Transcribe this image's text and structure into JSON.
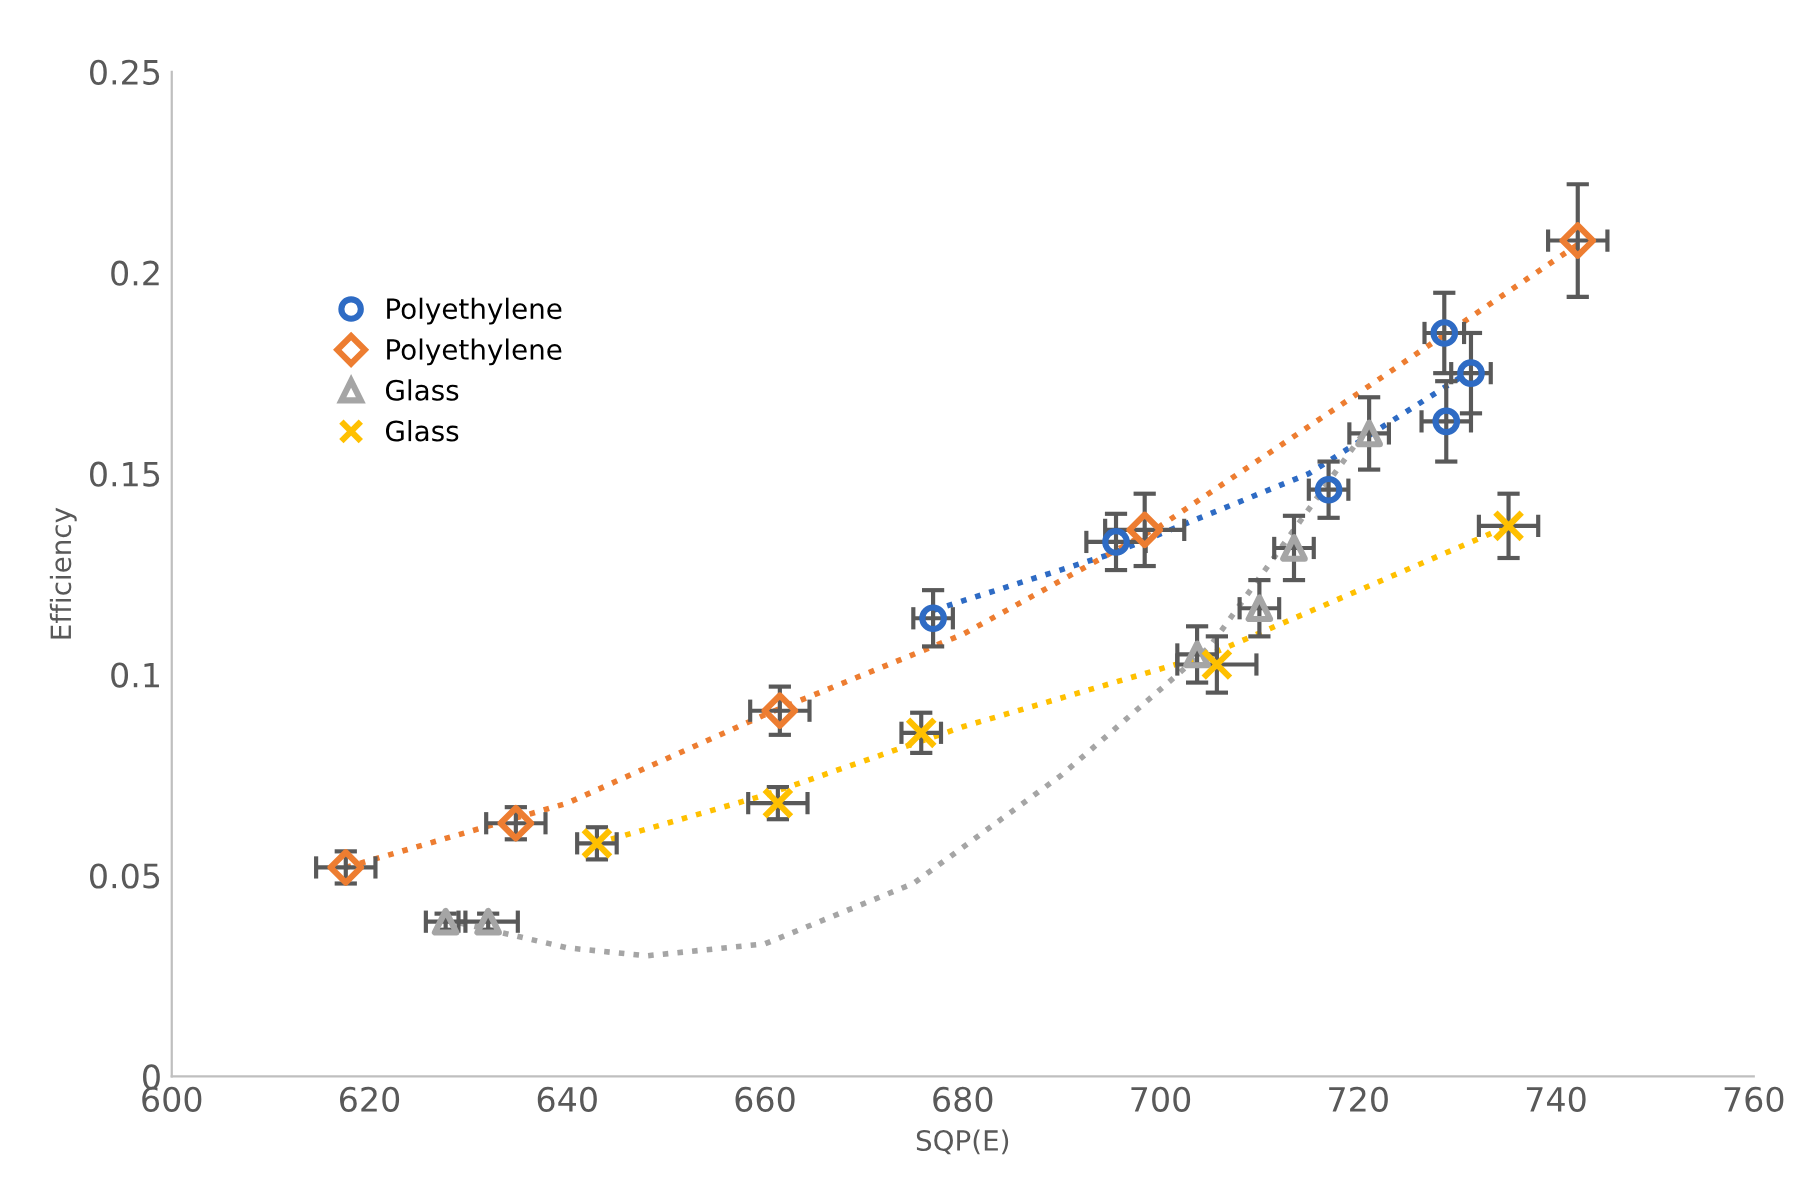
{
  "chart_data": {
    "type": "scatter",
    "xlabel": "SQP(E)",
    "ylabel": "Efficiency",
    "xlim": [
      600,
      760
    ],
    "xticks": [
      600,
      620,
      640,
      660,
      680,
      700,
      720,
      740,
      760
    ],
    "ylim": [
      0,
      0.25
    ],
    "yticks": [
      0,
      0.05,
      0.1,
      0.15,
      0.2,
      0.25
    ],
    "grid": false,
    "legend": "top left",
    "series": [
      {
        "name": "Polyethylene",
        "color": "#2e6bc4",
        "marker": "circle",
        "x": [
          677,
          695.5,
          717,
          728.7,
          731.4,
          728.9
        ],
        "values": [
          0.114,
          0.133,
          0.146,
          0.185,
          0.175,
          0.163
        ],
        "errors": [
          0.007,
          0.007,
          0.007,
          0.01,
          0.01,
          0.01
        ],
        "xerrors": [
          2,
          3,
          2,
          2,
          2,
          2.5
        ]
      },
      {
        "name": "Polyethylene",
        "color": "#ed7d31",
        "marker": "diamond",
        "x": [
          617.6,
          634.8,
          661.5,
          698.4,
          742.2
        ],
        "values": [
          0.052,
          0.063,
          0.091,
          0.136,
          0.208
        ],
        "errors": [
          0.004,
          0.004,
          0.006,
          0.009,
          0.014
        ],
        "xerrors": [
          3,
          3,
          3,
          4,
          3
        ]
      },
      {
        "name": "Glass",
        "color": "#a5a5a5",
        "marker": "triangle",
        "x": [
          627.7,
          632.0,
          703.7,
          710.0,
          713.5,
          721.1
        ],
        "values": [
          0.0385,
          0.0385,
          0.105,
          0.1165,
          0.1315,
          0.16
        ],
        "errors": [
          0.002,
          0.002,
          0.007,
          0.007,
          0.008,
          0.009
        ],
        "xerrors": [
          2,
          3,
          2,
          2,
          2,
          2
        ]
      },
      {
        "name": "Glass",
        "color": "#ffc000",
        "marker": "cross",
        "x": [
          643.0,
          661.3,
          675.8,
          705.7,
          735.2
        ],
        "values": [
          0.058,
          0.068,
          0.0855,
          0.1025,
          0.137
        ],
        "errors": [
          0.004,
          0.004,
          0.005,
          0.007,
          0.008
        ],
        "xerrors": [
          2,
          3,
          2,
          4,
          3
        ]
      },
      {
        "type": "line",
        "line_style": "dotted",
        "color": "#2e6bc4",
        "x": [
          677,
          695,
          715,
          731
        ],
        "values": [
          0.116,
          0.13,
          0.15,
          0.175
        ]
      },
      {
        "type": "line",
        "line_style": "dotted",
        "color": "#ed7d31",
        "x": [
          617.6,
          640,
          660,
          680,
          700,
          720,
          742.2
        ],
        "values": [
          0.052,
          0.068,
          0.09,
          0.11,
          0.137,
          0.17,
          0.207
        ]
      },
      {
        "type": "line",
        "line_style": "dotted",
        "color": "#a5a5a5",
        "x": [
          627.7,
          640,
          648,
          660,
          675,
          690,
          705,
          721.1
        ],
        "values": [
          0.039,
          0.032,
          0.03,
          0.033,
          0.048,
          0.075,
          0.107,
          0.162
        ]
      },
      {
        "type": "line",
        "line_style": "dotted",
        "color": "#ffc000",
        "x": [
          643,
          660,
          680,
          705,
          735.2
        ],
        "values": [
          0.058,
          0.07,
          0.087,
          0.105,
          0.137
        ]
      }
    ]
  }
}
